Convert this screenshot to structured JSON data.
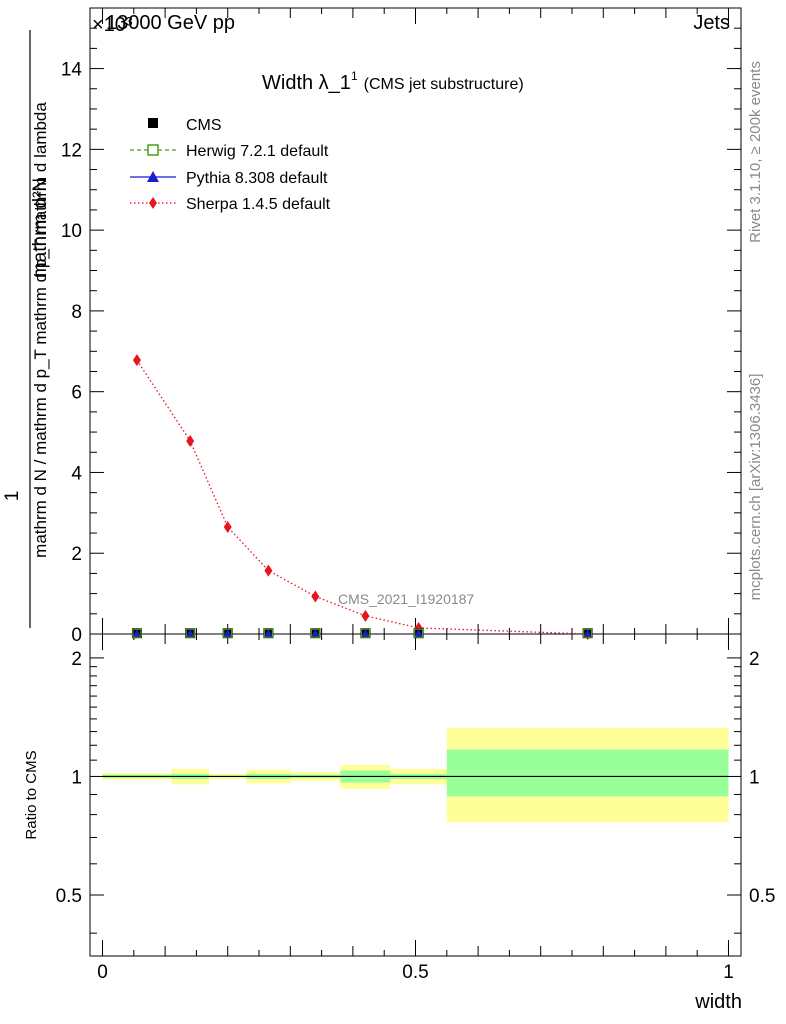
{
  "header": {
    "energy": "13000 GeV pp",
    "process": "Jets",
    "exponent": "×10³"
  },
  "side_labels": {
    "rivet": "Rivet 3.1.10, ≥ 200k events",
    "mcplots": "mcplots.cern.ch [arXiv:1306.3436]"
  },
  "chart_data": {
    "type": "line",
    "title": "Width λ_1",
    "title_sup": "1",
    "title_sub": "(CMS jet substructure)",
    "analysis": "CMS_2021_I1920187",
    "xlabel": "width",
    "ylabel_numerator": "1",
    "ylabel_denominator": "mathrm d N / mathrm d p_T mathrm d p_T mathrm d lambda",
    "ylabel_top": "mathrm d²N",
    "xlim": [
      -0.02,
      1.02
    ],
    "ylim_main": [
      0,
      15.5
    ],
    "ylim_ratio": [
      0.35,
      2.3
    ],
    "main_y_ticks": [
      "0",
      "2",
      "4",
      "6",
      "8",
      "10",
      "12",
      "14"
    ],
    "main_y_tick_values": [
      0,
      2,
      4,
      6,
      8,
      10,
      12,
      14
    ],
    "ratio_y_ticks": [
      "0.5",
      "1",
      "2"
    ],
    "ratio_y_tick_values": [
      0.5,
      1,
      2
    ],
    "x_ticks": [
      "0",
      "0.5",
      "1"
    ],
    "x_tick_values": [
      0,
      0.5,
      1
    ],
    "ratio_ylabel": "Ratio to CMS",
    "bin_edges": [
      0,
      0.11,
      0.17,
      0.23,
      0.3,
      0.38,
      0.46,
      0.55,
      1.0
    ],
    "series": [
      {
        "name": "CMS",
        "x": [
          0.055,
          0.14,
          0.2,
          0.265,
          0.34,
          0.42,
          0.505,
          0.775
        ],
        "values": [
          0.02,
          0.02,
          0.02,
          0.02,
          0.02,
          0.02,
          0.02,
          0.02
        ],
        "color": "#000000",
        "style": "marker"
      },
      {
        "name": "Herwig 7.2.1 default",
        "x": [
          0.055,
          0.14,
          0.2,
          0.265,
          0.34,
          0.42,
          0.505,
          0.775
        ],
        "values": [
          0.02,
          0.02,
          0.02,
          0.02,
          0.02,
          0.02,
          0.02,
          0.02
        ],
        "color": "#4a9e1c",
        "style": "dashed"
      },
      {
        "name": "Pythia 8.308 default",
        "x": [
          0.055,
          0.14,
          0.2,
          0.265,
          0.34,
          0.42,
          0.505,
          0.775
        ],
        "values": [
          0.02,
          0.02,
          0.02,
          0.02,
          0.02,
          0.02,
          0.02,
          0.02
        ],
        "color": "#1b1bd0",
        "style": "solid"
      },
      {
        "name": "Sherpa 1.4.5 default",
        "x": [
          0.055,
          0.14,
          0.2,
          0.265,
          0.34,
          0.42,
          0.505,
          0.775
        ],
        "values": [
          6.78,
          4.78,
          2.65,
          1.57,
          0.93,
          0.45,
          0.15,
          0.0
        ],
        "color": "#e8141e",
        "style": "dotted"
      }
    ],
    "ratio_bands": {
      "inner_low": [
        0.99,
        0.985,
        0.995,
        0.985,
        0.99,
        0.965,
        0.985,
        0.89
      ],
      "inner_high": [
        1.01,
        1.015,
        1.005,
        1.015,
        1.01,
        1.035,
        1.015,
        1.17
      ],
      "outer_low": [
        0.98,
        0.955,
        0.985,
        0.96,
        0.975,
        0.93,
        0.955,
        0.765
      ],
      "outer_high": [
        1.02,
        1.045,
        1.015,
        1.04,
        1.025,
        1.07,
        1.045,
        1.33
      ],
      "inner_color": "#99ff99",
      "outer_color": "#ffff99"
    }
  }
}
